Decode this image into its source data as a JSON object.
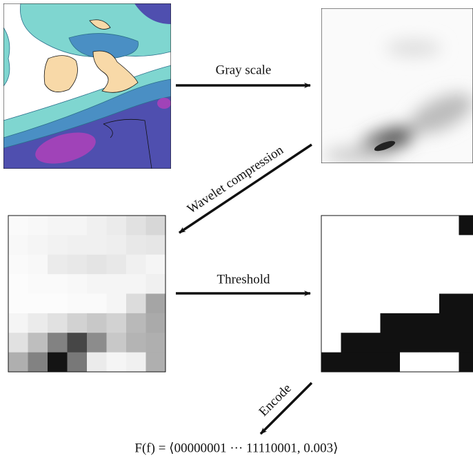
{
  "steps": {
    "gray_scale": "Gray scale",
    "wavelet_compression": "Wavelet compression",
    "threshold": "Threshold",
    "encode": "Encode"
  },
  "formula": "F(f) = ⟨00000001 ··· 11110001, 0.003⟩"
}
